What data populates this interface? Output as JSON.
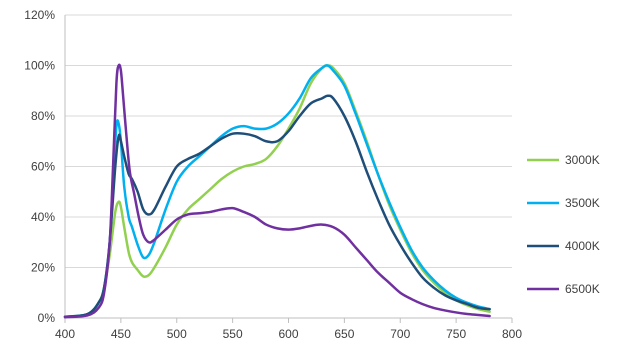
{
  "chart_data": {
    "type": "line",
    "title": "",
    "xlabel": "",
    "ylabel": "",
    "xlim": [
      400,
      800
    ],
    "ylim": [
      0,
      120
    ],
    "x_ticks": [
      "400",
      "450",
      "500",
      "550",
      "600",
      "650",
      "700",
      "750",
      "800"
    ],
    "y_ticks": [
      "0%",
      "20%",
      "40%",
      "60%",
      "80%",
      "100%",
      "120%"
    ],
    "grid": "horizontal",
    "legend_position": "right",
    "series": [
      {
        "name": "3000K",
        "color": "#92d050",
        "x": [
          400,
          420,
          430,
          435,
          440,
          445,
          448,
          450,
          453,
          457,
          460,
          465,
          470,
          475,
          480,
          490,
          500,
          510,
          520,
          530,
          540,
          550,
          560,
          570,
          580,
          590,
          600,
          610,
          620,
          630,
          635,
          640,
          650,
          660,
          670,
          680,
          690,
          700,
          710,
          720,
          730,
          740,
          750,
          760,
          770,
          780
        ],
        "y": [
          0.5,
          1.5,
          6,
          12,
          25,
          42,
          46,
          44,
          36,
          26,
          22,
          19,
          16.5,
          17,
          20,
          28,
          37,
          43,
          47,
          51,
          55,
          58,
          60,
          61,
          63,
          68,
          75,
          83,
          93,
          99,
          100,
          99,
          93,
          82,
          70,
          57,
          45,
          35,
          26,
          19,
          14,
          10,
          7,
          5,
          3.5,
          2.5
        ]
      },
      {
        "name": "3500K",
        "color": "#00b0f0",
        "x": [
          400,
          420,
          430,
          435,
          440,
          443,
          446,
          448,
          450,
          453,
          457,
          460,
          465,
          470,
          475,
          480,
          490,
          500,
          510,
          520,
          530,
          540,
          550,
          560,
          570,
          580,
          590,
          600,
          610,
          620,
          630,
          635,
          640,
          650,
          660,
          670,
          680,
          690,
          700,
          710,
          720,
          730,
          740,
          750,
          760,
          770,
          780
        ],
        "y": [
          0.5,
          1.5,
          6,
          12,
          30,
          55,
          76,
          77,
          70,
          52,
          40,
          36,
          29,
          24,
          25,
          30,
          43,
          54,
          60,
          64,
          68,
          72,
          75,
          76,
          75,
          75,
          77,
          81,
          87,
          95,
          99,
          100,
          98,
          92,
          81,
          69,
          57,
          46,
          36,
          27,
          20,
          15,
          11,
          8,
          6,
          4.5,
          3.5
        ]
      },
      {
        "name": "4000K",
        "color": "#1f4e79",
        "x": [
          400,
          420,
          430,
          435,
          440,
          445,
          448,
          450,
          453,
          457,
          460,
          465,
          470,
          475,
          480,
          490,
          500,
          510,
          520,
          530,
          540,
          550,
          560,
          570,
          580,
          590,
          600,
          610,
          620,
          630,
          635,
          640,
          650,
          660,
          670,
          680,
          690,
          700,
          710,
          720,
          730,
          740,
          750,
          760,
          770,
          780
        ],
        "y": [
          0.5,
          1.5,
          6,
          12,
          30,
          60,
          72,
          70,
          64,
          57,
          55,
          50,
          43,
          41,
          43,
          52,
          60,
          63,
          65,
          68,
          71,
          73,
          73,
          72,
          70,
          70,
          74,
          80,
          85,
          87,
          88,
          87,
          80,
          70,
          58,
          47,
          37,
          29,
          22,
          16,
          12,
          9,
          7,
          5.5,
          4,
          3.5
        ]
      },
      {
        "name": "6500K",
        "color": "#7030a0",
        "x": [
          400,
          420,
          430,
          435,
          440,
          443,
          446,
          448,
          450,
          452,
          455,
          458,
          462,
          466,
          470,
          475,
          480,
          490,
          500,
          510,
          520,
          530,
          540,
          550,
          560,
          570,
          580,
          590,
          600,
          610,
          620,
          630,
          640,
          650,
          660,
          670,
          680,
          690,
          700,
          710,
          720,
          730,
          740,
          750,
          760,
          770,
          780
        ],
        "y": [
          0.3,
          1,
          4,
          10,
          30,
          60,
          93,
          100,
          98,
          88,
          72,
          58,
          49,
          40,
          33,
          30,
          31,
          35,
          39,
          41,
          41.5,
          42,
          43,
          43.5,
          42,
          40,
          37,
          35.5,
          35,
          35.5,
          36.5,
          37,
          36,
          33,
          28,
          23,
          18,
          14,
          10,
          7.5,
          5.5,
          4,
          3,
          2.2,
          1.6,
          1.2,
          0.8
        ]
      }
    ]
  }
}
